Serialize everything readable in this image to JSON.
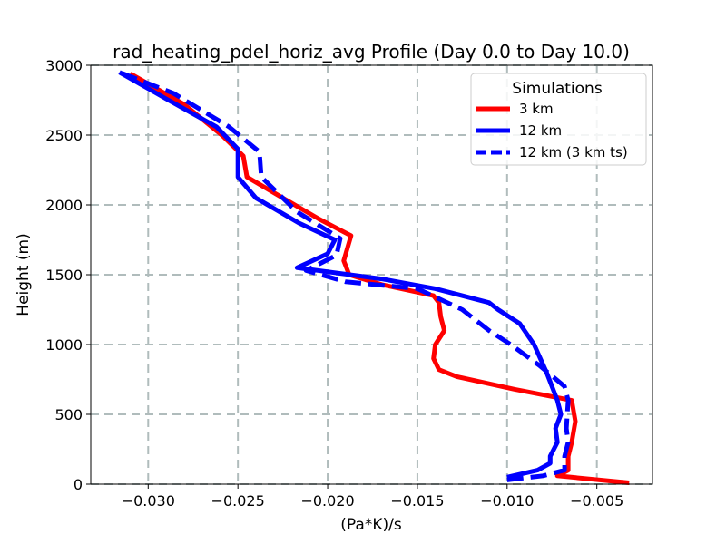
{
  "chart_data": {
    "type": "line",
    "title": "rad_heating_pdel_horiz_avg Profile (Day 0.0 to Day 10.0)",
    "xlabel": "(Pa*K)/s",
    "ylabel": "Height (m)",
    "xlim": [
      -0.0332,
      -0.0019
    ],
    "ylim": [
      0,
      3000
    ],
    "xticks": [
      -0.03,
      -0.025,
      -0.02,
      -0.015,
      -0.01,
      -0.005
    ],
    "xtick_labels": [
      "−0.030",
      "−0.025",
      "−0.020",
      "−0.015",
      "−0.010",
      "−0.005"
    ],
    "yticks": [
      0,
      500,
      1000,
      1500,
      2000,
      2500,
      3000
    ],
    "ytick_labels": [
      "0",
      "500",
      "1000",
      "1500",
      "2000",
      "2500",
      "3000"
    ],
    "grid": true,
    "legend": {
      "title": "Simulations",
      "position": "upper-right"
    },
    "series": [
      {
        "name": "3 km",
        "color": "#ff0000",
        "style": "solid",
        "points": [
          [
            -0.0032,
            10
          ],
          [
            -0.0072,
            60
          ],
          [
            -0.0066,
            100
          ],
          [
            -0.0066,
            200
          ],
          [
            -0.0064,
            300
          ],
          [
            -0.0062,
            450
          ],
          [
            -0.0064,
            600
          ],
          [
            -0.0096,
            680
          ],
          [
            -0.0128,
            770
          ],
          [
            -0.0138,
            820
          ],
          [
            -0.0141,
            900
          ],
          [
            -0.014,
            1000
          ],
          [
            -0.0135,
            1100
          ],
          [
            -0.0137,
            1200
          ],
          [
            -0.0138,
            1300
          ],
          [
            -0.0141,
            1350
          ],
          [
            -0.017,
            1430
          ],
          [
            -0.0188,
            1500
          ],
          [
            -0.0191,
            1600
          ],
          [
            -0.0187,
            1780
          ],
          [
            -0.0205,
            1900
          ],
          [
            -0.0225,
            2050
          ],
          [
            -0.0245,
            2200
          ],
          [
            -0.0247,
            2350
          ],
          [
            -0.0259,
            2500
          ],
          [
            -0.028,
            2720
          ],
          [
            -0.031,
            2940
          ]
        ]
      },
      {
        "name": "12 km",
        "color": "#0000ff",
        "style": "solid",
        "points": [
          [
            -0.01,
            50
          ],
          [
            -0.0083,
            100
          ],
          [
            -0.0076,
            150
          ],
          [
            -0.0076,
            200
          ],
          [
            -0.0072,
            300
          ],
          [
            -0.0073,
            400
          ],
          [
            -0.007,
            500
          ],
          [
            -0.0072,
            600
          ],
          [
            -0.0078,
            800
          ],
          [
            -0.0085,
            1000
          ],
          [
            -0.0093,
            1150
          ],
          [
            -0.0105,
            1250
          ],
          [
            -0.011,
            1300
          ],
          [
            -0.014,
            1400
          ],
          [
            -0.017,
            1470
          ],
          [
            -0.0217,
            1550
          ],
          [
            -0.02,
            1650
          ],
          [
            -0.0196,
            1750
          ],
          [
            -0.0216,
            1870
          ],
          [
            -0.024,
            2050
          ],
          [
            -0.025,
            2200
          ],
          [
            -0.025,
            2400
          ],
          [
            -0.0262,
            2560
          ],
          [
            -0.029,
            2760
          ],
          [
            -0.0316,
            2950
          ]
        ]
      },
      {
        "name": "12 km (3 km ts)",
        "color": "#0000ff",
        "style": "dashed",
        "points": [
          [
            -0.01,
            30
          ],
          [
            -0.008,
            60
          ],
          [
            -0.0068,
            100
          ],
          [
            -0.0068,
            200
          ],
          [
            -0.0066,
            300
          ],
          [
            -0.0067,
            400
          ],
          [
            -0.0066,
            600
          ],
          [
            -0.0068,
            700
          ],
          [
            -0.0082,
            850
          ],
          [
            -0.0098,
            1000
          ],
          [
            -0.011,
            1100
          ],
          [
            -0.0125,
            1250
          ],
          [
            -0.015,
            1400
          ],
          [
            -0.019,
            1450
          ],
          [
            -0.0212,
            1530
          ],
          [
            -0.0195,
            1640
          ],
          [
            -0.0193,
            1760
          ],
          [
            -0.0217,
            1950
          ],
          [
            -0.0237,
            2200
          ],
          [
            -0.0238,
            2380
          ],
          [
            -0.0255,
            2560
          ],
          [
            -0.0286,
            2800
          ],
          [
            -0.0316,
            2950
          ]
        ]
      }
    ]
  }
}
